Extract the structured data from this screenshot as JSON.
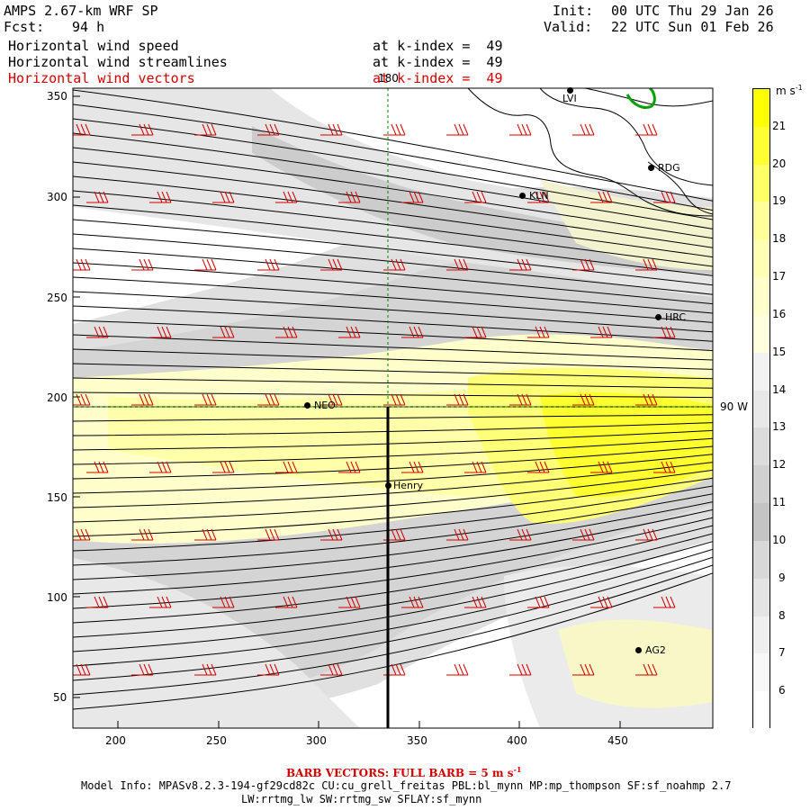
{
  "header": {
    "title": "AMPS 2.67-km WRF SP",
    "forecast_label": "Fcst:",
    "forecast_hours": "94 h",
    "init_label": "Init:",
    "init_time": "00 UTC Thu 29 Jan 26",
    "valid_label": "Valid:",
    "valid_time": "22 UTC Sun 01 Feb 26"
  },
  "fields": [
    {
      "name": "Horizontal wind speed",
      "level": "at k-index =  49",
      "color": "#000000"
    },
    {
      "name": "Horizontal wind streamlines",
      "level": "at k-index =  49",
      "color": "#000000"
    },
    {
      "name": "Horizontal wind vectors",
      "level": "at k-index =  49",
      "color": "#d10000"
    }
  ],
  "map": {
    "x_ticks": [
      "200",
      "250",
      "300",
      "350",
      "400",
      "450"
    ],
    "y_ticks": [
      "350",
      "300",
      "250",
      "200",
      "150",
      "100",
      "50"
    ],
    "meridian_label": "180",
    "parallel_label": "90 W",
    "stations": [
      {
        "id": "LVI"
      },
      {
        "id": "RDG"
      },
      {
        "id": "KLN"
      },
      {
        "id": "HRC"
      },
      {
        "id": "NEO"
      },
      {
        "id": "Henry"
      },
      {
        "id": "AG2"
      }
    ]
  },
  "colorbar": {
    "units": "m s",
    "units_exp": "-1",
    "labels": [
      "21",
      "20",
      "19",
      "18",
      "17",
      "16",
      "15",
      "14",
      "13",
      "12",
      "11",
      "10",
      "9",
      "8",
      "7",
      "6"
    ],
    "colors": [
      "#ffff00",
      "#ffff33",
      "#ffff66",
      "#ffff99",
      "#ffffb3",
      "#ffffcc",
      "#ffffdd",
      "#f2f2f2",
      "#e8e8e8",
      "#dcdcdc",
      "#d0d0d0",
      "#c4c4c4",
      "#d8d8d8",
      "#e4e4e4",
      "#efefef",
      "#f8f8f8",
      "#ffffff"
    ]
  },
  "footer": {
    "barb_note": "BARB VECTORS:  FULL BARB = 5 m s",
    "barb_exp": "-1",
    "model_line1": "Model Info: MPASv8.2.3-194-gf29cd82c CU:cu_grell_freitas PBL:bl_mynn MP:mp_thompson SF:sf_noahmp 2.7",
    "model_line2": "LW:rrtmg_lw SW:rrtmg_sw SFLAY:sf_mynn"
  }
}
